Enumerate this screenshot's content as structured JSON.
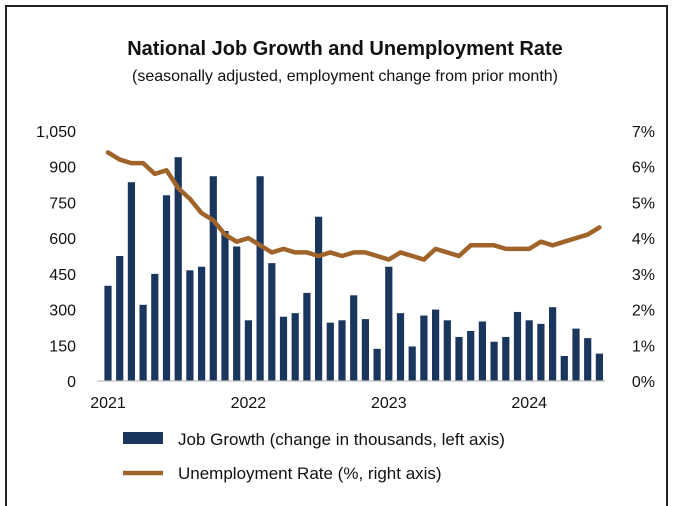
{
  "chart_data": {
    "type": "bar+line",
    "title": "National Job Growth and Unemployment Rate",
    "subtitle": "(seasonally adjusted, employment change from prior month)",
    "y_left": {
      "ticks": [
        "0",
        "150",
        "300",
        "450",
        "600",
        "750",
        "900",
        "1,050"
      ],
      "range": [
        0,
        1050
      ]
    },
    "y_right": {
      "ticks": [
        "0%",
        "1%",
        "2%",
        "3%",
        "4%",
        "5%",
        "6%",
        "7%"
      ],
      "range": [
        0,
        7
      ]
    },
    "x_ticks": [
      "2021",
      "2022",
      "2023",
      "2024"
    ],
    "months": [
      "2021-01",
      "2021-02",
      "2021-03",
      "2021-04",
      "2021-05",
      "2021-06",
      "2021-07",
      "2021-08",
      "2021-09",
      "2021-10",
      "2021-11",
      "2021-12",
      "2022-01",
      "2022-02",
      "2022-03",
      "2022-04",
      "2022-05",
      "2022-06",
      "2022-07",
      "2022-08",
      "2022-09",
      "2022-10",
      "2022-11",
      "2022-12",
      "2023-01",
      "2023-02",
      "2023-03",
      "2023-04",
      "2023-05",
      "2023-06",
      "2023-07",
      "2023-08",
      "2023-09",
      "2023-10",
      "2023-11",
      "2023-12",
      "2024-01",
      "2024-02",
      "2024-03",
      "2024-04",
      "2024-05",
      "2024-06",
      "2024-07"
    ],
    "series": [
      {
        "name": "Job Growth (change in thousands, left axis)",
        "type": "bar",
        "axis": "left",
        "color": "#1a365d",
        "values": [
          400,
          525,
          835,
          320,
          450,
          780,
          940,
          465,
          480,
          860,
          630,
          565,
          255,
          860,
          495,
          270,
          285,
          370,
          690,
          245,
          255,
          360,
          260,
          135,
          480,
          285,
          145,
          275,
          300,
          255,
          185,
          210,
          250,
          165,
          185,
          290,
          255,
          240,
          310,
          105,
          220,
          180,
          115
        ]
      },
      {
        "name": "Unemployment Rate (%, right axis)",
        "type": "line",
        "axis": "right",
        "color": "#a0642b",
        "values": [
          6.4,
          6.2,
          6.1,
          6.1,
          5.8,
          5.9,
          5.4,
          5.1,
          4.7,
          4.5,
          4.1,
          3.9,
          4.0,
          3.8,
          3.6,
          3.7,
          3.6,
          3.6,
          3.5,
          3.6,
          3.5,
          3.6,
          3.6,
          3.5,
          3.4,
          3.6,
          3.5,
          3.4,
          3.7,
          3.6,
          3.5,
          3.8,
          3.8,
          3.8,
          3.7,
          3.7,
          3.7,
          3.9,
          3.8,
          3.9,
          4.0,
          4.1,
          4.3
        ]
      }
    ],
    "legend_position": "bottom",
    "grid": false
  }
}
